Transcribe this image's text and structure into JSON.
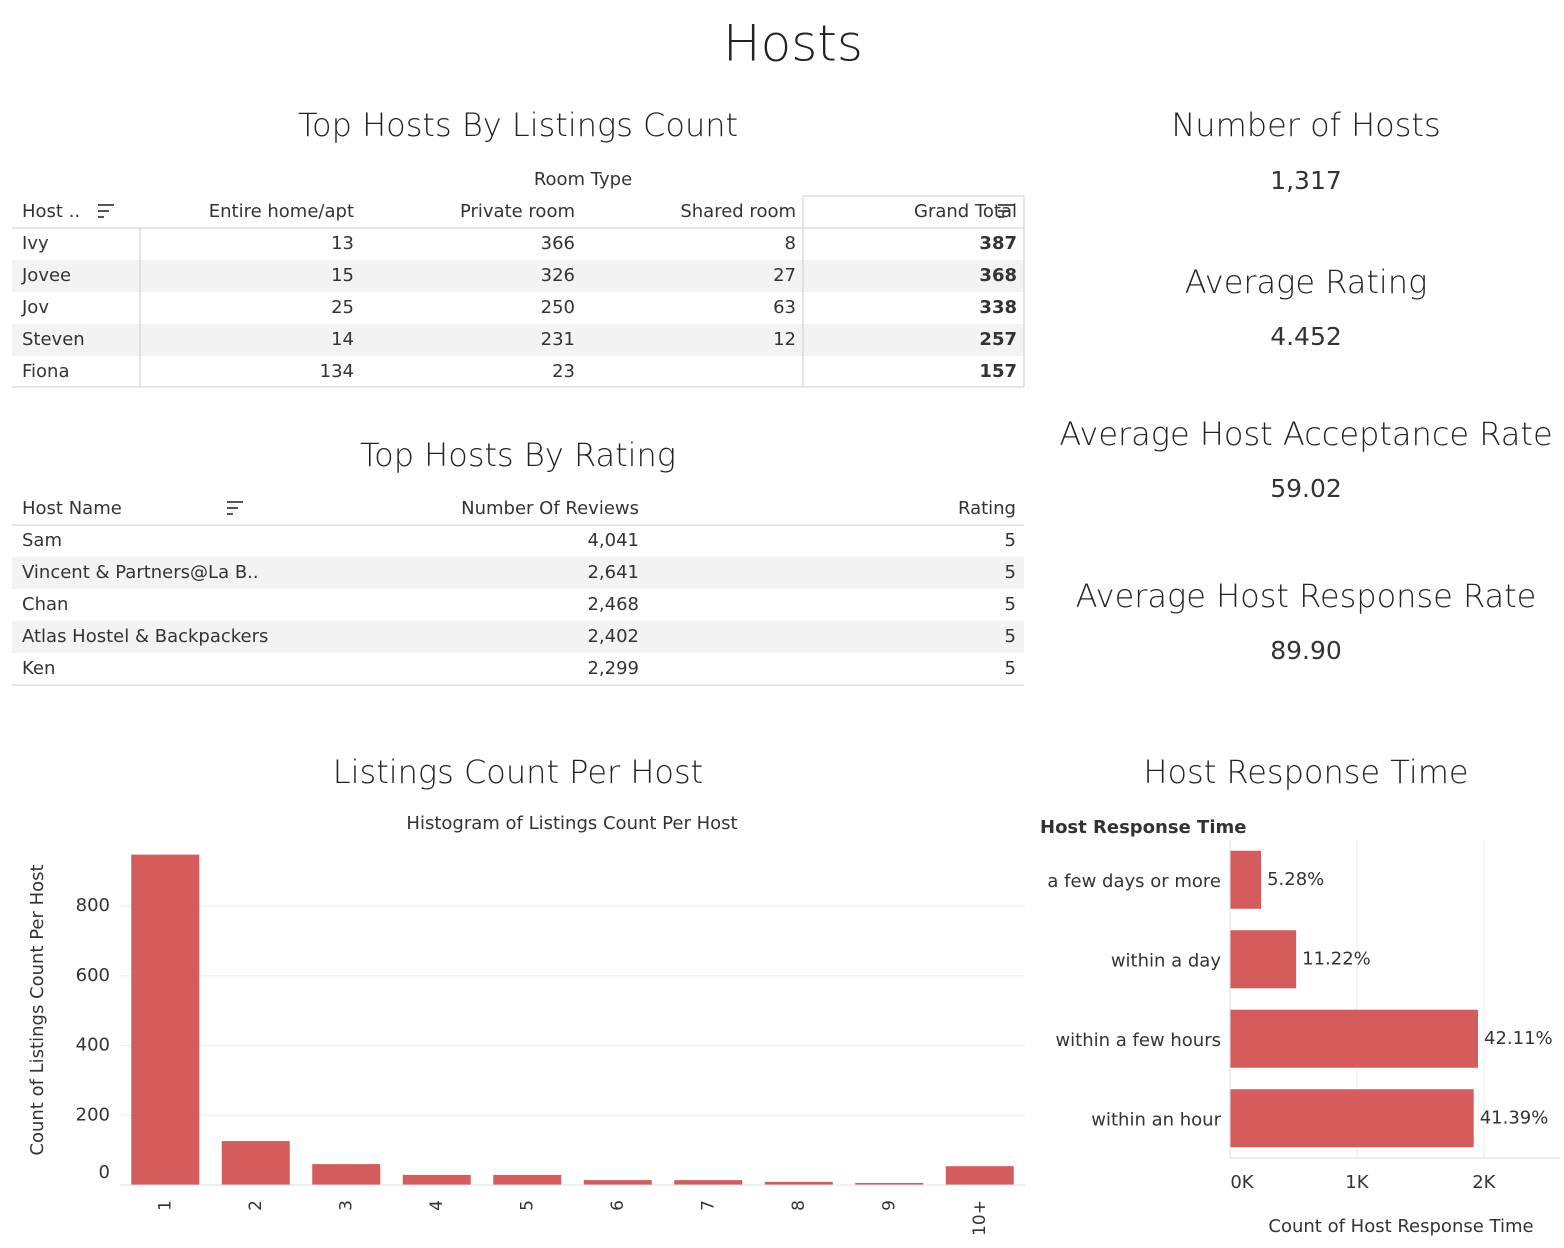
{
  "title": "Hosts",
  "tables": [
    {
      "title": "Top Hosts By Listings Count",
      "group_header": "Room Type",
      "columns": [
        "Host ..",
        "Entire home/apt",
        "Private room",
        "Shared room",
        "Grand Total"
      ],
      "rows": [
        [
          "Ivy",
          13,
          366,
          8,
          387
        ],
        [
          "Jovee",
          15,
          326,
          27,
          368
        ],
        [
          "Jov",
          25,
          250,
          63,
          338
        ],
        [
          "Steven",
          14,
          231,
          12,
          257
        ],
        [
          "Fiona",
          134,
          23,
          null,
          157
        ]
      ]
    },
    {
      "title": "Top Hosts By Rating",
      "columns": [
        "Host Name",
        "Number Of Reviews",
        "Rating"
      ],
      "rows": [
        [
          "Sam",
          "4,041",
          5
        ],
        [
          "Vincent & Partners@La B..",
          "2,641",
          5
        ],
        [
          "Chan",
          "2,468",
          5
        ],
        [
          "Atlas Hostel & Backpackers",
          "2,402",
          5
        ],
        [
          "Ken",
          "2,299",
          5
        ]
      ]
    }
  ],
  "kpis": [
    {
      "title": "Number of Hosts",
      "value": "1,317"
    },
    {
      "title": "Average Rating",
      "value": "4.452"
    },
    {
      "title": "Average Host Acceptance Rate",
      "value": "59.02"
    },
    {
      "title": "Average Host Response Rate",
      "value": "89.90"
    }
  ],
  "chart_data": [
    {
      "type": "bar",
      "orientation": "vertical",
      "title": "Listings Count Per Host",
      "subtitle": "Histogram of Listings Count Per Host",
      "y_label": "Count of Listings Count Per Host",
      "categories": [
        "1",
        "2",
        "3",
        "4",
        "5",
        "6",
        "7",
        "8",
        "9",
        "10+"
      ],
      "values": [
        948,
        126,
        60,
        29,
        29,
        14,
        14,
        9,
        6,
        54
      ],
      "color": "#d45c5c",
      "ylim": [
        0,
        990
      ],
      "yticks": [
        0,
        200,
        400,
        600,
        800
      ],
      "grid": true
    },
    {
      "type": "bar",
      "orientation": "horizontal",
      "title": "Host Response Time",
      "category_label": "Host Response Time",
      "x_label": "Count of Host Response Time",
      "categories": [
        "a few days or more",
        "within a day",
        "within a few hours",
        "within an hour"
      ],
      "values": [
        245,
        521,
        1954,
        1920
      ],
      "percent_labels": [
        "5.28%",
        "11.22%",
        "42.11%",
        "41.39%"
      ],
      "color": "#d45c5c",
      "xlim": [
        0,
        2600
      ],
      "xticks": [
        {
          "value": 0,
          "label": "0K"
        },
        {
          "value": 1000,
          "label": "1K"
        },
        {
          "value": 2000,
          "label": "2K"
        }
      ],
      "grid": true
    }
  ]
}
